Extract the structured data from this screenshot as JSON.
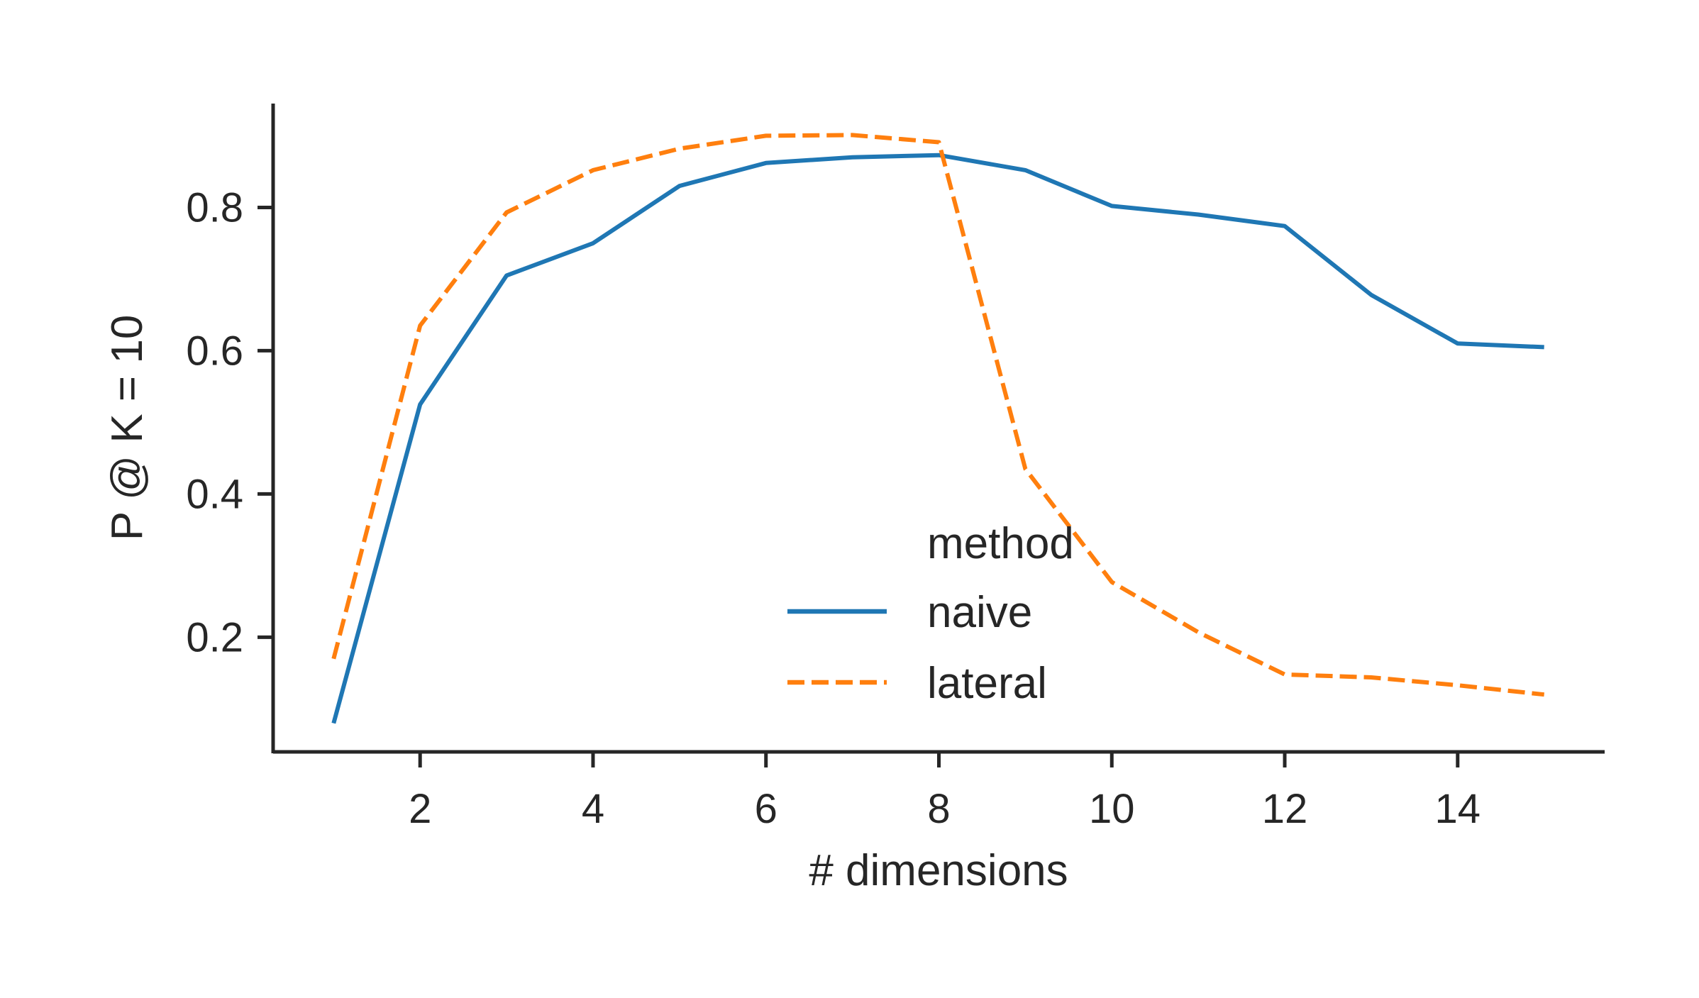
{
  "chart_data": {
    "type": "line",
    "title": "",
    "xlabel": "# dimensions",
    "ylabel": "P @ K = 10",
    "xlim": [
      0.3,
      15.7
    ],
    "ylim": [
      0.04,
      0.945
    ],
    "x_ticks": [
      2,
      4,
      6,
      8,
      10,
      12,
      14
    ],
    "y_ticks": [
      0.2,
      0.4,
      0.6,
      0.8
    ],
    "x_tick_labels": [
      "2",
      "4",
      "6",
      "8",
      "10",
      "12",
      "14"
    ],
    "y_tick_labels": [
      "0.2",
      "0.4",
      "0.6",
      "0.8"
    ],
    "grid": false,
    "legend": {
      "title": "method",
      "placement": "lower-center"
    },
    "x": [
      1,
      2,
      3,
      4,
      5,
      6,
      7,
      8,
      9,
      10,
      11,
      12,
      13,
      14,
      15
    ],
    "series": [
      {
        "name": "naive",
        "color": "#1f77b4",
        "style": "solid",
        "values": [
          0.08,
          0.525,
          0.705,
          0.75,
          0.83,
          0.862,
          0.87,
          0.873,
          0.852,
          0.802,
          0.79,
          0.774,
          0.678,
          0.61,
          0.605
        ]
      },
      {
        "name": "lateral",
        "color": "#ff7f0e",
        "style": "dashed",
        "values": [
          0.17,
          0.635,
          0.793,
          0.852,
          0.882,
          0.9,
          0.901,
          0.891,
          0.435,
          0.277,
          0.207,
          0.148,
          0.144,
          0.133,
          0.12
        ]
      }
    ]
  }
}
